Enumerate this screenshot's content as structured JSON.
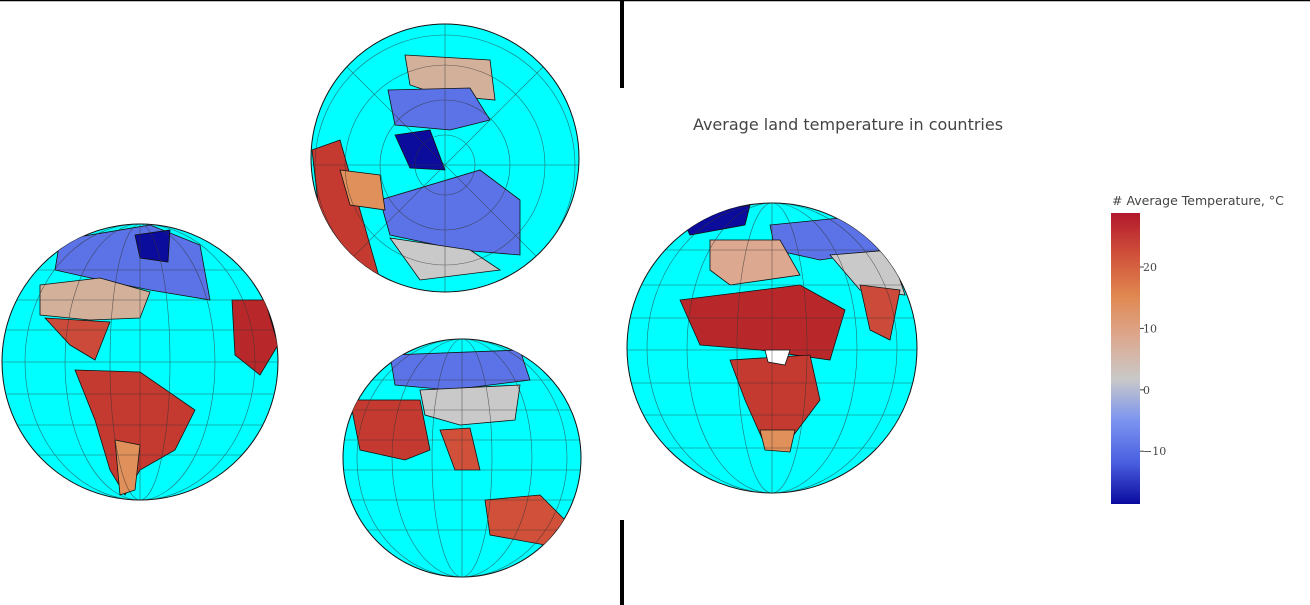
{
  "title": "Average land temperature in countries",
  "colorbar": {
    "title": "# Average Temperature, °C",
    "range": [
      -18.6,
      28.8
    ],
    "ticks": [
      {
        "value": -10,
        "label": "−10"
      },
      0,
      10,
      20
    ],
    "colors": [
      "#0a0a9e",
      "#4a5fe0",
      "#7b94f0",
      "#c9c9c9",
      "#dca890",
      "#e08850",
      "#d0503a",
      "#b2182b"
    ]
  }
}
